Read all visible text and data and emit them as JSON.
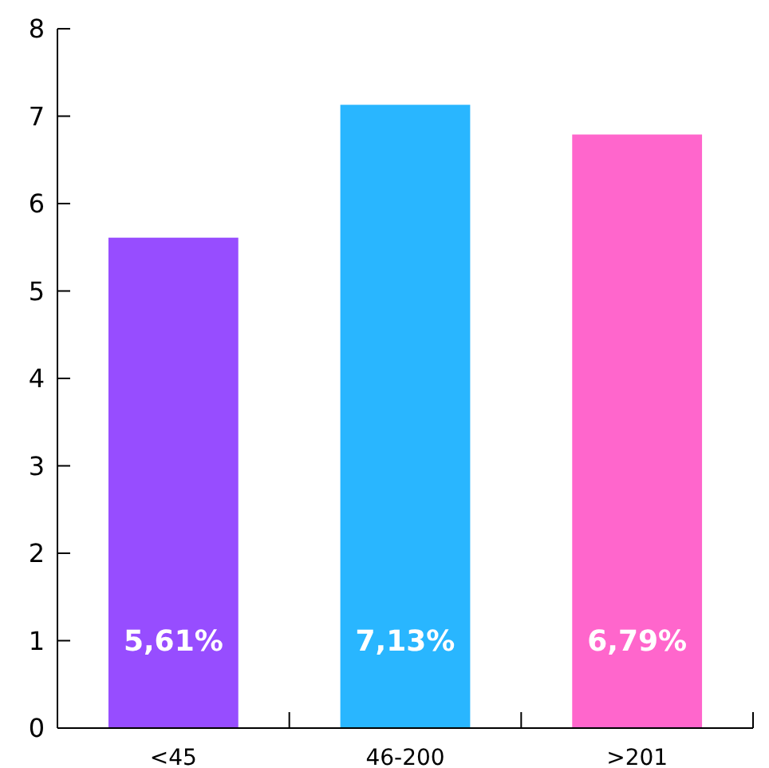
{
  "chart_data": {
    "type": "bar",
    "categories": [
      "<45",
      "46-200",
      ">201"
    ],
    "values": [
      5.61,
      7.13,
      6.79
    ],
    "colors": [
      "#974dff",
      "#29b6ff",
      "#ff66cc"
    ],
    "value_labels": [
      "5,61%",
      "7,13%",
      "6,79%"
    ],
    "ylim": [
      0,
      8
    ],
    "yticks": [
      0,
      1,
      2,
      3,
      4,
      5,
      6,
      7,
      8
    ]
  }
}
